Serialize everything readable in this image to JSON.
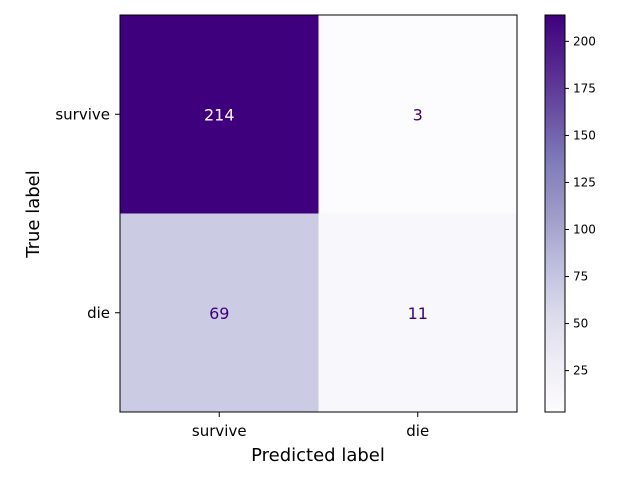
{
  "chart_data": {
    "type": "heatmap",
    "title": "",
    "xlabel": "Predicted label",
    "ylabel": "True label",
    "x_categories": [
      "survive",
      "die"
    ],
    "y_categories": [
      "survive",
      "die"
    ],
    "matrix": [
      [
        214,
        3
      ],
      [
        69,
        11
      ]
    ],
    "colormap": "Purples",
    "colorbar": {
      "range": [
        3,
        214
      ],
      "ticks": [
        25,
        50,
        75,
        100,
        125,
        150,
        175,
        200
      ]
    },
    "grid": false,
    "legend": "colorbar-right"
  }
}
